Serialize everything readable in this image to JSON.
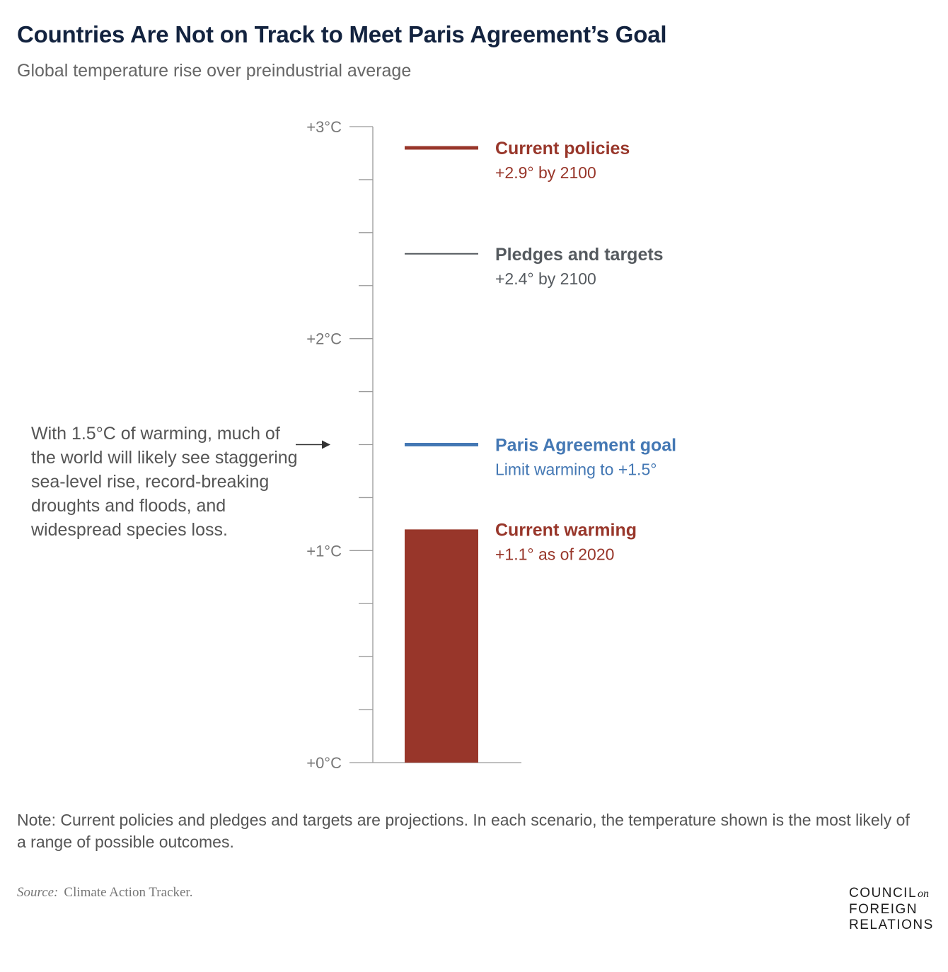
{
  "title": "Countries Are Not on Track to Meet Paris Agreement’s Goal",
  "subtitle": "Global temperature rise over preindustrial average",
  "annotation": "With 1.5°C of warming, much of the world will likely see staggering sea-level rise, record-breaking droughts and floods, and widespread species loss.",
  "note": "Note: Current policies and pledges and targets are projections. In each scenario, the temperature shown is the most likely of a range of possible outcomes.",
  "source": {
    "label": "Source:",
    "text": "Climate Action Tracker."
  },
  "logo": {
    "line1": "COUNCIL",
    "on": "on",
    "line2": "FOREIGN",
    "line3": "RELATIONS"
  },
  "colors": {
    "current": "#98362a",
    "pledges": "#555a5f",
    "paris": "#4478b4",
    "axis": "#9a9a9a",
    "axis_text": "#777777"
  },
  "chart_data": {
    "type": "bar",
    "ylabel": "",
    "ylim": [
      0,
      3
    ],
    "yticks": [
      0,
      1,
      2,
      3
    ],
    "ytick_labels": [
      "+0°C",
      "+1°C",
      "+2°C",
      "+3°C"
    ],
    "minor_tick_step": 0.25,
    "annotation_arrow_value": 1.5,
    "bar": {
      "name": "Current warming",
      "detail": "+1.1° as of 2020",
      "value": 1.1,
      "color_key": "current"
    },
    "markers": [
      {
        "name": "Current policies",
        "detail": "+2.9° by 2100",
        "value": 2.9,
        "color_key": "current",
        "weight": "thick"
      },
      {
        "name": "Pledges and targets",
        "detail": "+2.4° by 2100",
        "value": 2.4,
        "color_key": "pledges",
        "weight": "thin"
      },
      {
        "name": "Paris Agreement goal",
        "detail": "Limit warming to +1.5°",
        "value": 1.5,
        "color_key": "paris",
        "weight": "thick"
      }
    ]
  }
}
